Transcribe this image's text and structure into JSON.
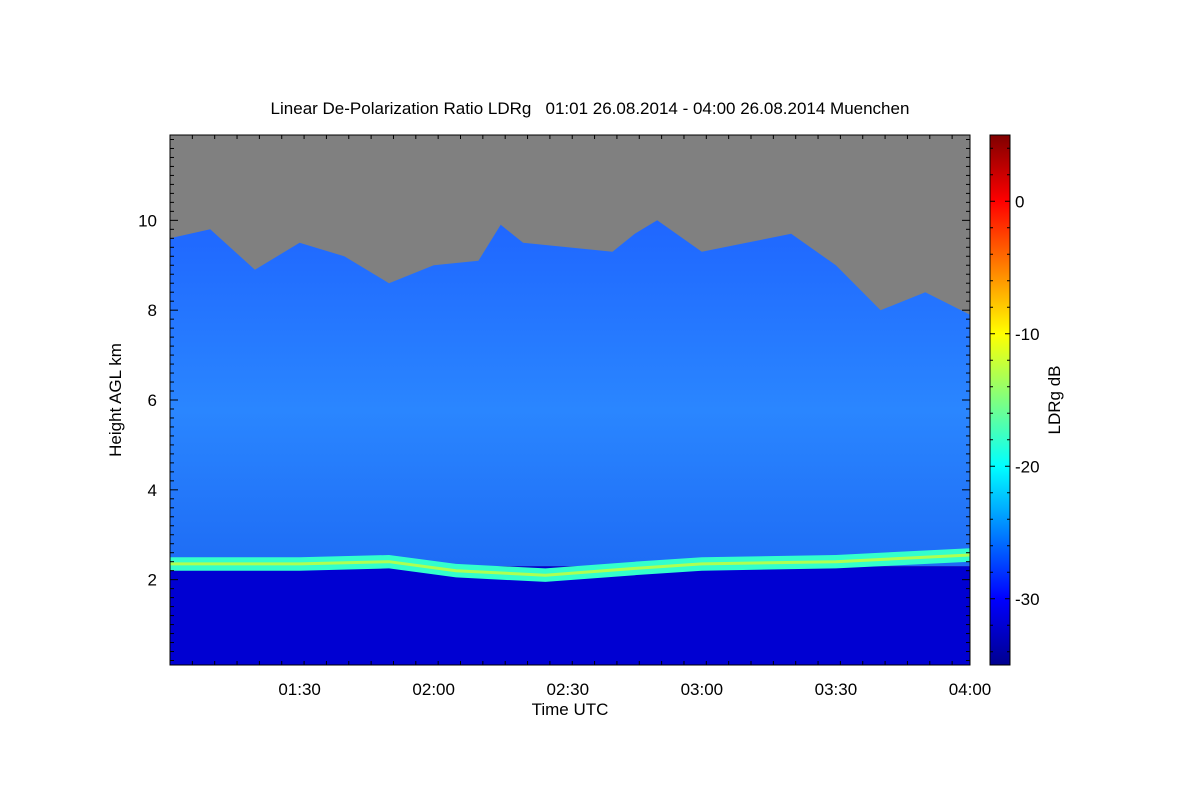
{
  "chart_data": {
    "type": "heatmap",
    "title": "Linear De-Polarization Ratio LDRg   01:01 26.08.2014 - 04:00 26.08.2014 Muenchen",
    "xlabel": "Time UTC",
    "ylabel": "Height AGL km",
    "x_range": [
      "01:01",
      "04:00"
    ],
    "x_ticks": [
      "01:30",
      "02:00",
      "02:30",
      "03:00",
      "03:30",
      "04:00"
    ],
    "y_range": [
      0.1,
      11.9
    ],
    "y_ticks": [
      "2",
      "4",
      "6",
      "8",
      "10"
    ],
    "colorbar": {
      "label": "LDRg dB",
      "range": [
        -35,
        5
      ],
      "ticks": [
        "0",
        "-10",
        "-20",
        "-30"
      ],
      "colormap": "jet"
    },
    "no_data_color": "#808080",
    "features": {
      "cloud_top_height_km": [
        {
          "time": "01:01",
          "value": 9.6
        },
        {
          "time": "01:10",
          "value": 9.8
        },
        {
          "time": "01:20",
          "value": 8.9
        },
        {
          "time": "01:30",
          "value": 9.5
        },
        {
          "time": "01:40",
          "value": 9.2
        },
        {
          "time": "01:50",
          "value": 8.6
        },
        {
          "time": "02:00",
          "value": 9.0
        },
        {
          "time": "02:10",
          "value": 9.1
        },
        {
          "time": "02:15",
          "value": 9.9
        },
        {
          "time": "02:20",
          "value": 9.5
        },
        {
          "time": "02:30",
          "value": 9.4
        },
        {
          "time": "02:40",
          "value": 9.3
        },
        {
          "time": "02:45",
          "value": 9.7
        },
        {
          "time": "02:50",
          "value": 10.0
        },
        {
          "time": "03:00",
          "value": 9.3
        },
        {
          "time": "03:10",
          "value": 9.5
        },
        {
          "time": "03:20",
          "value": 9.7
        },
        {
          "time": "03:30",
          "value": 9.0
        },
        {
          "time": "03:40",
          "value": 8.0
        },
        {
          "time": "03:50",
          "value": 8.4
        },
        {
          "time": "04:00",
          "value": 7.9
        }
      ],
      "melting_layer_height_km": [
        {
          "time": "01:01",
          "value": 2.35
        },
        {
          "time": "01:30",
          "value": 2.35
        },
        {
          "time": "01:50",
          "value": 2.4
        },
        {
          "time": "02:05",
          "value": 2.2
        },
        {
          "time": "02:25",
          "value": 2.1
        },
        {
          "time": "02:45",
          "value": 2.25
        },
        {
          "time": "03:00",
          "value": 2.35
        },
        {
          "time": "03:30",
          "value": 2.4
        },
        {
          "time": "04:00",
          "value": 2.55
        }
      ],
      "melting_layer_ldr_db": -18,
      "ice_cloud_ldr_db": -24,
      "rain_ldr_db": -32
    }
  }
}
